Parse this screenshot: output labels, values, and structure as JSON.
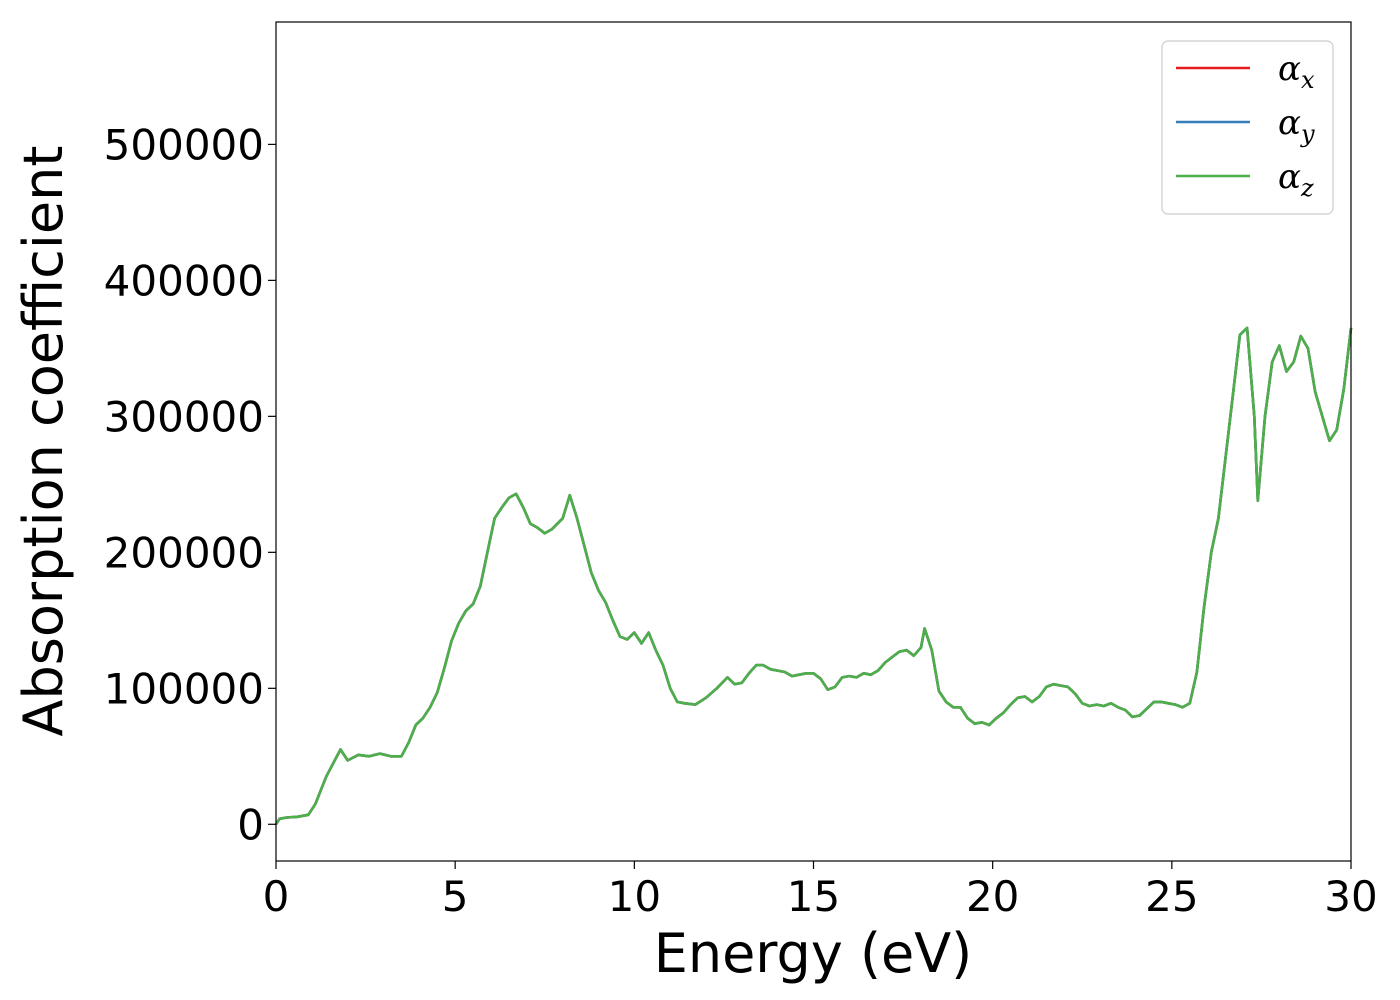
{
  "chart_data": {
    "type": "line",
    "xlabel": "Energy (eV)",
    "ylabel": "Absorption coefficient",
    "xlim": [
      0,
      30
    ],
    "ylim": [
      -27000,
      590000
    ],
    "x_ticks": [
      0,
      5,
      10,
      15,
      20,
      25,
      30
    ],
    "y_ticks": [
      0,
      100000,
      200000,
      300000,
      400000,
      500000
    ],
    "grid": false,
    "legend_position": "top-right",
    "series": [
      {
        "name": "α",
        "subscript": "x",
        "color": "#e41a1c"
      },
      {
        "name": "α",
        "subscript": "y",
        "color": "#377eb8"
      },
      {
        "name": "α",
        "subscript": "z",
        "color": "#4daf4a"
      }
    ],
    "x": [
      0,
      0.1,
      0.3,
      0.6,
      0.9,
      1.1,
      1.4,
      1.6,
      1.8,
      2.0,
      2.3,
      2.6,
      2.9,
      3.2,
      3.5,
      3.7,
      3.9,
      4.1,
      4.3,
      4.5,
      4.7,
      4.9,
      5.1,
      5.3,
      5.5,
      5.7,
      5.9,
      6.1,
      6.3,
      6.5,
      6.7,
      6.9,
      7.1,
      7.3,
      7.5,
      7.7,
      8.0,
      8.2,
      8.4,
      8.6,
      8.8,
      9.0,
      9.2,
      9.4,
      9.6,
      9.8,
      10.0,
      10.2,
      10.4,
      10.6,
      10.8,
      11.0,
      11.2,
      11.4,
      11.7,
      12.0,
      12.3,
      12.6,
      12.8,
      13.0,
      13.2,
      13.4,
      13.6,
      13.8,
      14.0,
      14.2,
      14.4,
      14.6,
      14.8,
      15.0,
      15.2,
      15.4,
      15.6,
      15.8,
      16.0,
      16.2,
      16.4,
      16.6,
      16.8,
      17.0,
      17.2,
      17.4,
      17.6,
      17.8,
      18.0,
      18.1,
      18.3,
      18.5,
      18.7,
      18.9,
      19.1,
      19.3,
      19.5,
      19.7,
      19.9,
      20.1,
      20.3,
      20.5,
      20.7,
      20.9,
      21.1,
      21.3,
      21.5,
      21.7,
      21.9,
      22.1,
      22.3,
      22.5,
      22.7,
      22.9,
      23.1,
      23.3,
      23.5,
      23.7,
      23.9,
      24.1,
      24.3,
      24.5,
      24.7,
      24.9,
      25.1,
      25.3,
      25.5,
      25.7,
      25.9,
      26.1,
      26.3,
      26.5,
      26.7,
      26.9,
      27.1,
      27.3,
      27.4,
      27.6,
      27.8,
      28.0,
      28.2,
      28.4,
      28.6,
      28.8,
      29.0,
      29.2,
      29.4,
      29.6,
      29.8,
      30.0
    ],
    "y": [
      0,
      4000,
      5000,
      5500,
      7000,
      15000,
      35000,
      45000,
      55000,
      47000,
      51000,
      50000,
      52000,
      50000,
      50000,
      60000,
      73000,
      78000,
      86000,
      97000,
      115000,
      135000,
      148000,
      157000,
      162000,
      175000,
      200000,
      225000,
      233000,
      240000,
      243000,
      233000,
      221000,
      218000,
      214000,
      217000,
      225000,
      242000,
      225000,
      205000,
      185000,
      172000,
      163000,
      150000,
      138000,
      136000,
      141000,
      133000,
      141000,
      128000,
      117000,
      100000,
      90000,
      89000,
      88000,
      93000,
      100000,
      108000,
      103000,
      104000,
      111000,
      117000,
      117000,
      114000,
      113000,
      112000,
      109000,
      110000,
      111000,
      111000,
      107000,
      99000,
      101000,
      108000,
      109000,
      108000,
      111000,
      110000,
      113000,
      119000,
      123000,
      127000,
      128000,
      124000,
      130000,
      144000,
      128000,
      98000,
      90000,
      86000,
      86000,
      78000,
      74000,
      75000,
      73000,
      78000,
      82000,
      88000,
      93000,
      94000,
      90000,
      94000,
      101000,
      103000,
      102000,
      101000,
      96000,
      89000,
      87000,
      88000,
      87000,
      89000,
      86000,
      84000,
      79000,
      80000,
      85000,
      90000,
      90000,
      89000,
      88000,
      86000,
      89000,
      112000,
      160000,
      200000,
      225000,
      270000,
      315000,
      360000,
      365000,
      300000,
      238000,
      300000,
      340000,
      352000,
      333000,
      340000,
      359000,
      350000,
      318000,
      300000,
      282000,
      290000,
      320000,
      365000
    ]
  }
}
